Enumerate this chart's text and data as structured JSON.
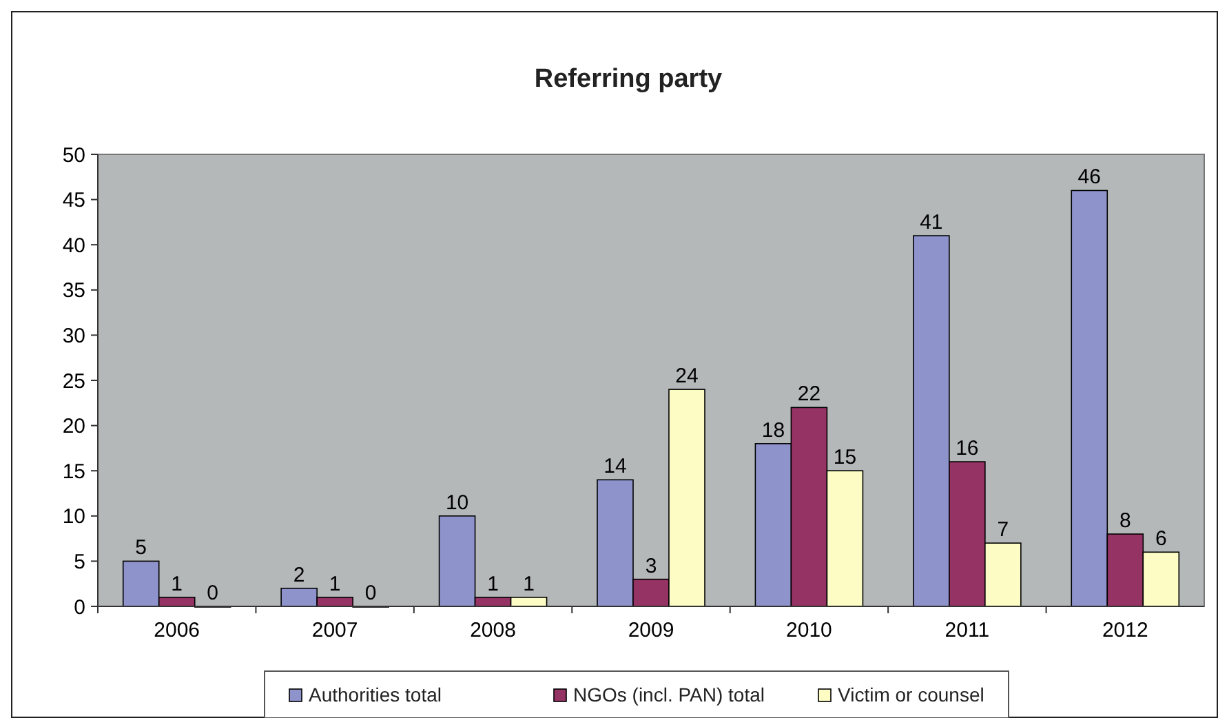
{
  "chart_data": {
    "type": "bar",
    "title": "Referring party",
    "categories": [
      "2006",
      "2007",
      "2008",
      "2009",
      "2010",
      "2011",
      "2012"
    ],
    "series": [
      {
        "name": "Authorities total",
        "color": "#8f93cc",
        "values": [
          5,
          2,
          10,
          14,
          18,
          41,
          46
        ]
      },
      {
        "name": "NGOs (incl. PAN) total",
        "color": "#953365",
        "values": [
          1,
          1,
          1,
          3,
          22,
          16,
          8
        ]
      },
      {
        "name": "Victim or counsel",
        "color": "#fcfcc4",
        "values": [
          0,
          0,
          1,
          24,
          15,
          7,
          6
        ]
      }
    ],
    "ylim": [
      0,
      50
    ],
    "yticks": [
      0,
      5,
      10,
      15,
      20,
      25,
      30,
      35,
      40,
      45,
      50
    ],
    "grid": false,
    "data_labels": true,
    "legend": "bottom"
  }
}
